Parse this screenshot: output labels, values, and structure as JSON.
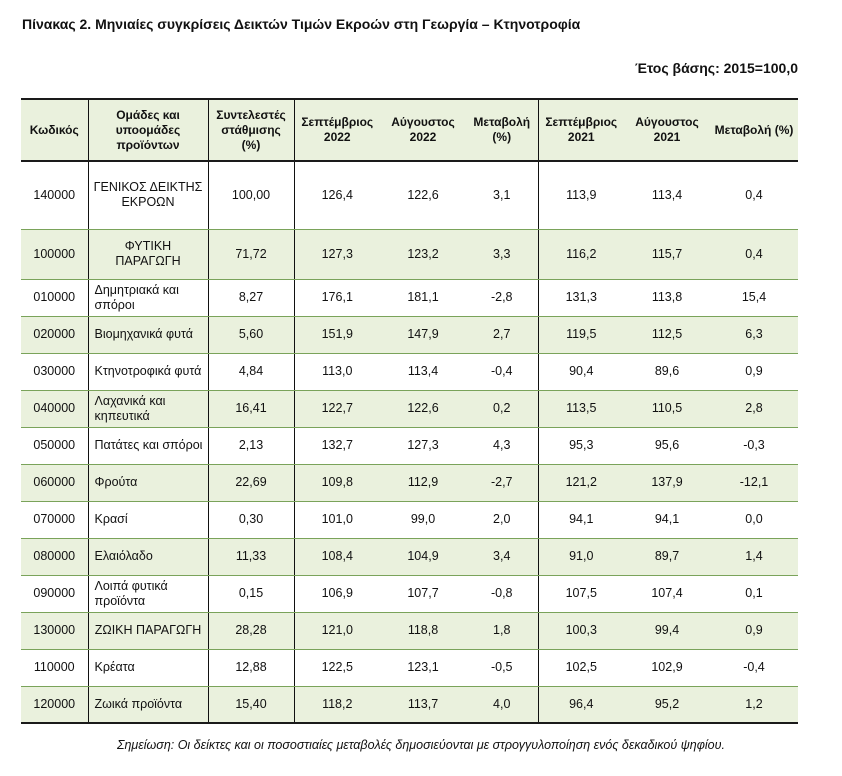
{
  "title": "Πίνακας 2. Μηνιαίες συγκρίσεις Δεικτών Τιμών Εκροών στη Γεωργία – Κτηνοτροφία",
  "base_year": "Έτος βάσης: 2015=100,0",
  "columns": [
    "Κωδικός",
    "Ομάδες και υποομάδες προϊόντων",
    "Συντελεστές στάθμισης (%)",
    "Σεπτέμβριος 2022",
    "Αύγουστος 2022",
    "Μεταβολή (%)",
    "Σεπτέμβριος 2021",
    "Αύγουστος 2021",
    "Μεταβολή (%)"
  ],
  "rows": [
    [
      "140000",
      "ΓΕΝΙΚΟΣ ΔΕΙΚΤΗΣ ΕΚΡΟΩΝ",
      "100,00",
      "126,4",
      "122,6",
      "3,1",
      "113,9",
      "113,4",
      "0,4"
    ],
    [
      "100000",
      "ΦΥΤΙΚΗ ΠΑΡΑΓΩΓΗ",
      "71,72",
      "127,3",
      "123,2",
      "3,3",
      "116,2",
      "115,7",
      "0,4"
    ],
    [
      "010000",
      "Δημητριακά και σπόροι",
      "8,27",
      "176,1",
      "181,1",
      "-2,8",
      "131,3",
      "113,8",
      "15,4"
    ],
    [
      "020000",
      "Βιομηχανικά φυτά",
      "5,60",
      "151,9",
      "147,9",
      "2,7",
      "119,5",
      "112,5",
      "6,3"
    ],
    [
      "030000",
      "Κτηνοτροφικά φυτά",
      "4,84",
      "113,0",
      "113,4",
      "-0,4",
      "90,4",
      "89,6",
      "0,9"
    ],
    [
      "040000",
      "Λαχανικά και κηπευτικά",
      "16,41",
      "122,7",
      "122,6",
      "0,2",
      "113,5",
      "110,5",
      "2,8"
    ],
    [
      "050000",
      "Πατάτες και σπόροι",
      "2,13",
      "132,7",
      "127,3",
      "4,3",
      "95,3",
      "95,6",
      "-0,3"
    ],
    [
      "060000",
      "Φρούτα",
      "22,69",
      "109,8",
      "112,9",
      "-2,7",
      "121,2",
      "137,9",
      "-12,1"
    ],
    [
      "070000",
      "Κρασί",
      "0,30",
      "101,0",
      "99,0",
      "2,0",
      "94,1",
      "94,1",
      "0,0"
    ],
    [
      "080000",
      "Ελαιόλαδο",
      "11,33",
      "108,4",
      "104,9",
      "3,4",
      "91,0",
      "89,7",
      "1,4"
    ],
    [
      "090000",
      "Λοιπά φυτικά προϊόντα",
      "0,15",
      "106,9",
      "107,7",
      "-0,8",
      "107,5",
      "107,4",
      "0,1"
    ],
    [
      "130000",
      "ΖΩΙΚΗ ΠΑΡΑΓΩΓΗ",
      "28,28",
      "121,0",
      "118,8",
      "1,8",
      "100,3",
      "99,4",
      "0,9"
    ],
    [
      "110000",
      "Κρέατα",
      "12,88",
      "122,5",
      "123,1",
      "-0,5",
      "102,5",
      "102,9",
      "-0,4"
    ],
    [
      "120000",
      "Ζωικά προϊόντα",
      "15,40",
      "118,2",
      "113,7",
      "4,0",
      "96,4",
      "95,2",
      "1,2"
    ]
  ],
  "note": "Σημείωση: Οι δείκτες και οι ποσοστιαίες μεταβολές δημοσιεύονται με στρογγυλοποίηση ενός δεκαδικού ψηφίου."
}
